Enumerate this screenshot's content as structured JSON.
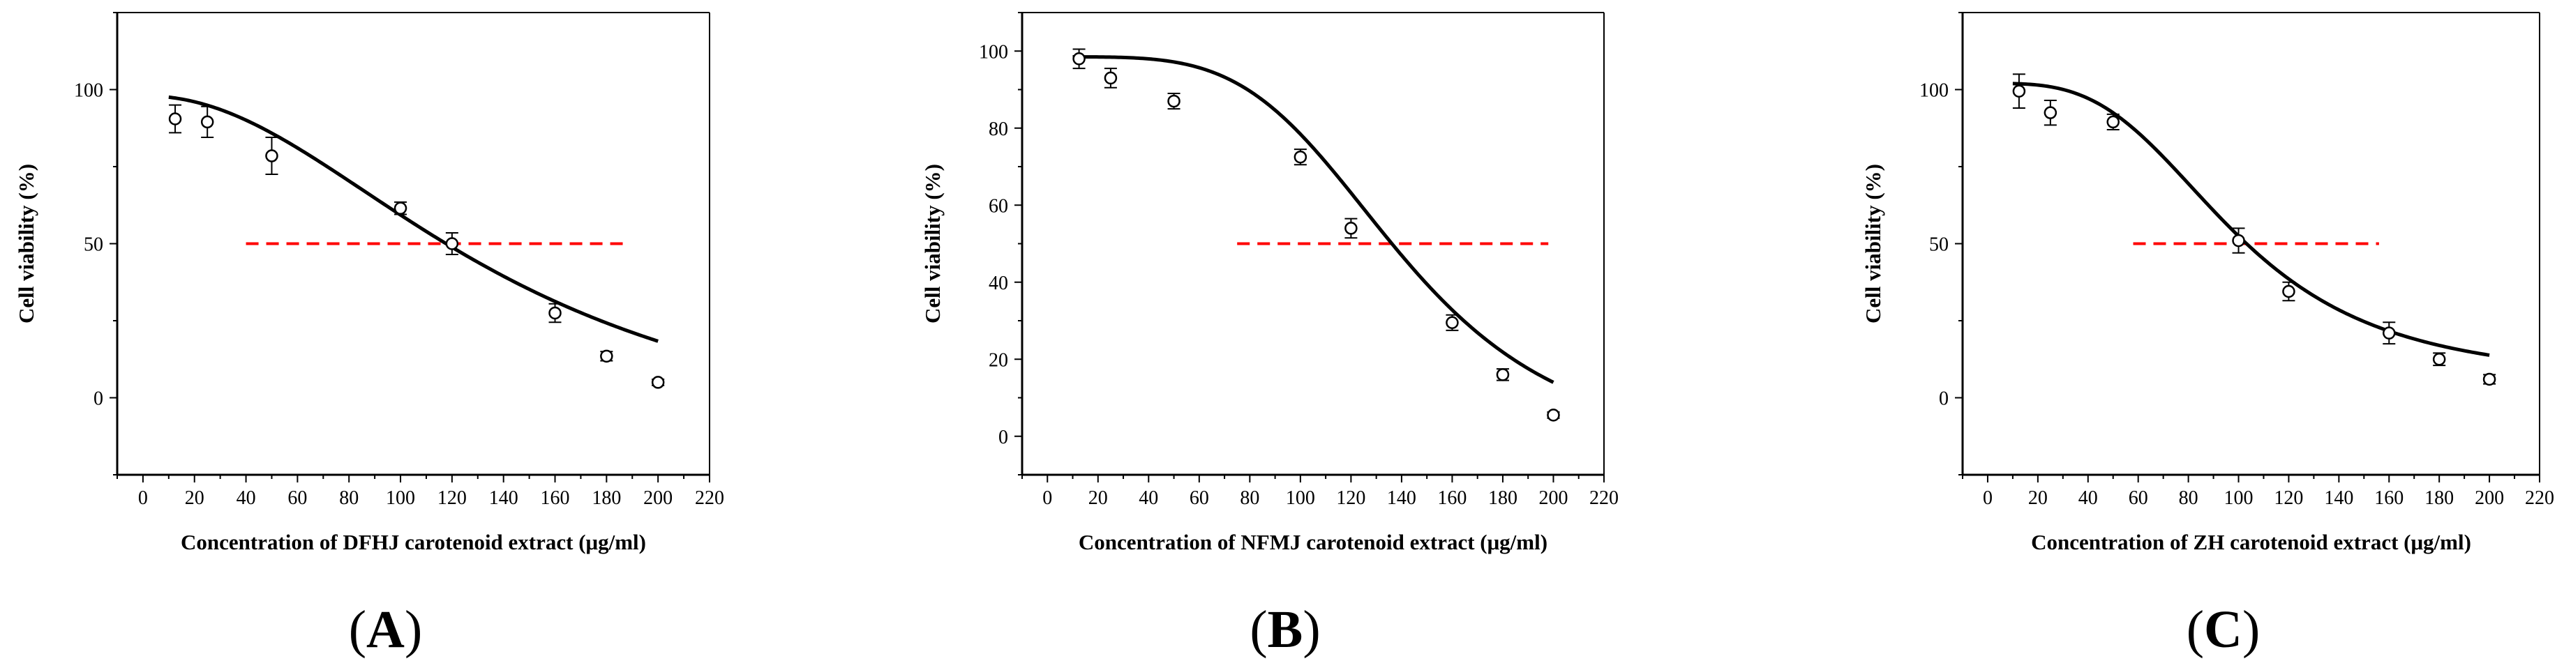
{
  "colors": {
    "axis": "#000000",
    "fit": "#000000",
    "ic50_line": "#ff0000",
    "marker_fill": "#ffffff"
  },
  "chart_data": [
    {
      "type": "scatter",
      "panel_label": "A",
      "label_open": "(",
      "label_close": ")",
      "xlabel": "Concentration of DFHJ carotenoid extract (μg/ml)",
      "ylabel": "Cell viability (%)",
      "xlim": [
        -10,
        220
      ],
      "ylim": [
        -25,
        125
      ],
      "xticks": [
        0,
        20,
        40,
        60,
        80,
        100,
        120,
        140,
        160,
        180,
        200,
        220
      ],
      "xtick_labels": [
        "0",
        "20",
        "40",
        "60",
        "80",
        "100",
        "120",
        "140",
        "160",
        "180",
        "200",
        "220"
      ],
      "yticks": [
        0,
        50,
        100
      ],
      "ytick_labels": [
        "0",
        "50",
        "100"
      ],
      "x": [
        12.5,
        25,
        50,
        100,
        120,
        160,
        180,
        200
      ],
      "y": [
        90.5,
        89.5,
        78.5,
        61.5,
        50,
        27.5,
        13.5,
        5
      ],
      "error": [
        4.5,
        5,
        6,
        2,
        3.5,
        3,
        1.5,
        1
      ],
      "fit": {
        "model": "sigmoid",
        "top": 98,
        "bottom": -20,
        "ec50": 141,
        "hill": 2.09,
        "x_range": [
          10,
          200
        ]
      },
      "reference_line": {
        "y": 50,
        "x_range": [
          40,
          188
        ],
        "style": "dashed"
      },
      "grid": false
    },
    {
      "type": "scatter",
      "panel_label": "B",
      "label_open": "(",
      "label_close": ")",
      "xlabel": "Concentration of NFMJ carotenoid extract (μg/ml)",
      "ylabel": "Cell viability (%)",
      "xlim": [
        -10,
        220
      ],
      "ylim": [
        -10,
        110
      ],
      "xticks": [
        0,
        20,
        40,
        60,
        80,
        100,
        120,
        140,
        160,
        180,
        200,
        220
      ],
      "xtick_labels": [
        "0",
        "20",
        "40",
        "60",
        "80",
        "100",
        "120",
        "140",
        "160",
        "180",
        "200",
        "220"
      ],
      "yticks": [
        0,
        20,
        40,
        60,
        80,
        100
      ],
      "ytick_labels": [
        "0",
        "20",
        "40",
        "60",
        "80",
        "100"
      ],
      "x": [
        12.5,
        25,
        50,
        100,
        120,
        160,
        180,
        200
      ],
      "y": [
        98,
        93,
        87,
        72.5,
        54,
        29.5,
        16,
        5.5
      ],
      "error": [
        2.5,
        2.5,
        2,
        2,
        2.5,
        2,
        1.5,
        0.8
      ],
      "fit": {
        "model": "sigmoid",
        "top": 98.5,
        "bottom": -5,
        "ec50": 140.3,
        "hill": 4.21,
        "x_range": [
          10,
          200
        ]
      },
      "reference_line": {
        "y": 50,
        "x_range": [
          75,
          198
        ],
        "style": "dashed"
      },
      "grid": false
    },
    {
      "type": "scatter",
      "panel_label": "C",
      "label_open": "(",
      "label_close": ")",
      "xlabel": "Concentration of ZH carotenoid extract (μg/ml)",
      "ylabel": "Cell viability (%)",
      "xlim": [
        -10,
        220
      ],
      "ylim": [
        -25,
        125
      ],
      "xticks": [
        0,
        20,
        40,
        60,
        80,
        100,
        120,
        140,
        160,
        180,
        200,
        220
      ],
      "xtick_labels": [
        "0",
        "20",
        "40",
        "60",
        "80",
        "100",
        "120",
        "140",
        "160",
        "180",
        "200",
        "220"
      ],
      "yticks": [
        0,
        50,
        100
      ],
      "ytick_labels": [
        "0",
        "50",
        "100"
      ],
      "x": [
        12.5,
        25,
        50,
        100,
        120,
        160,
        180,
        200
      ],
      "y": [
        99.5,
        92.5,
        89.5,
        51,
        34.5,
        21,
        12.5,
        6
      ],
      "error": [
        5.5,
        4,
        2.5,
        4,
        3,
        3.5,
        2,
        1.5
      ],
      "fit": {
        "model": "sigmoid",
        "top": 102,
        "bottom": 5,
        "ec50": 98.7,
        "hill": 3.26,
        "x_range": [
          10,
          200
        ]
      },
      "reference_line": {
        "y": 50,
        "x_range": [
          58,
          156
        ],
        "style": "dashed"
      },
      "grid": false
    }
  ]
}
